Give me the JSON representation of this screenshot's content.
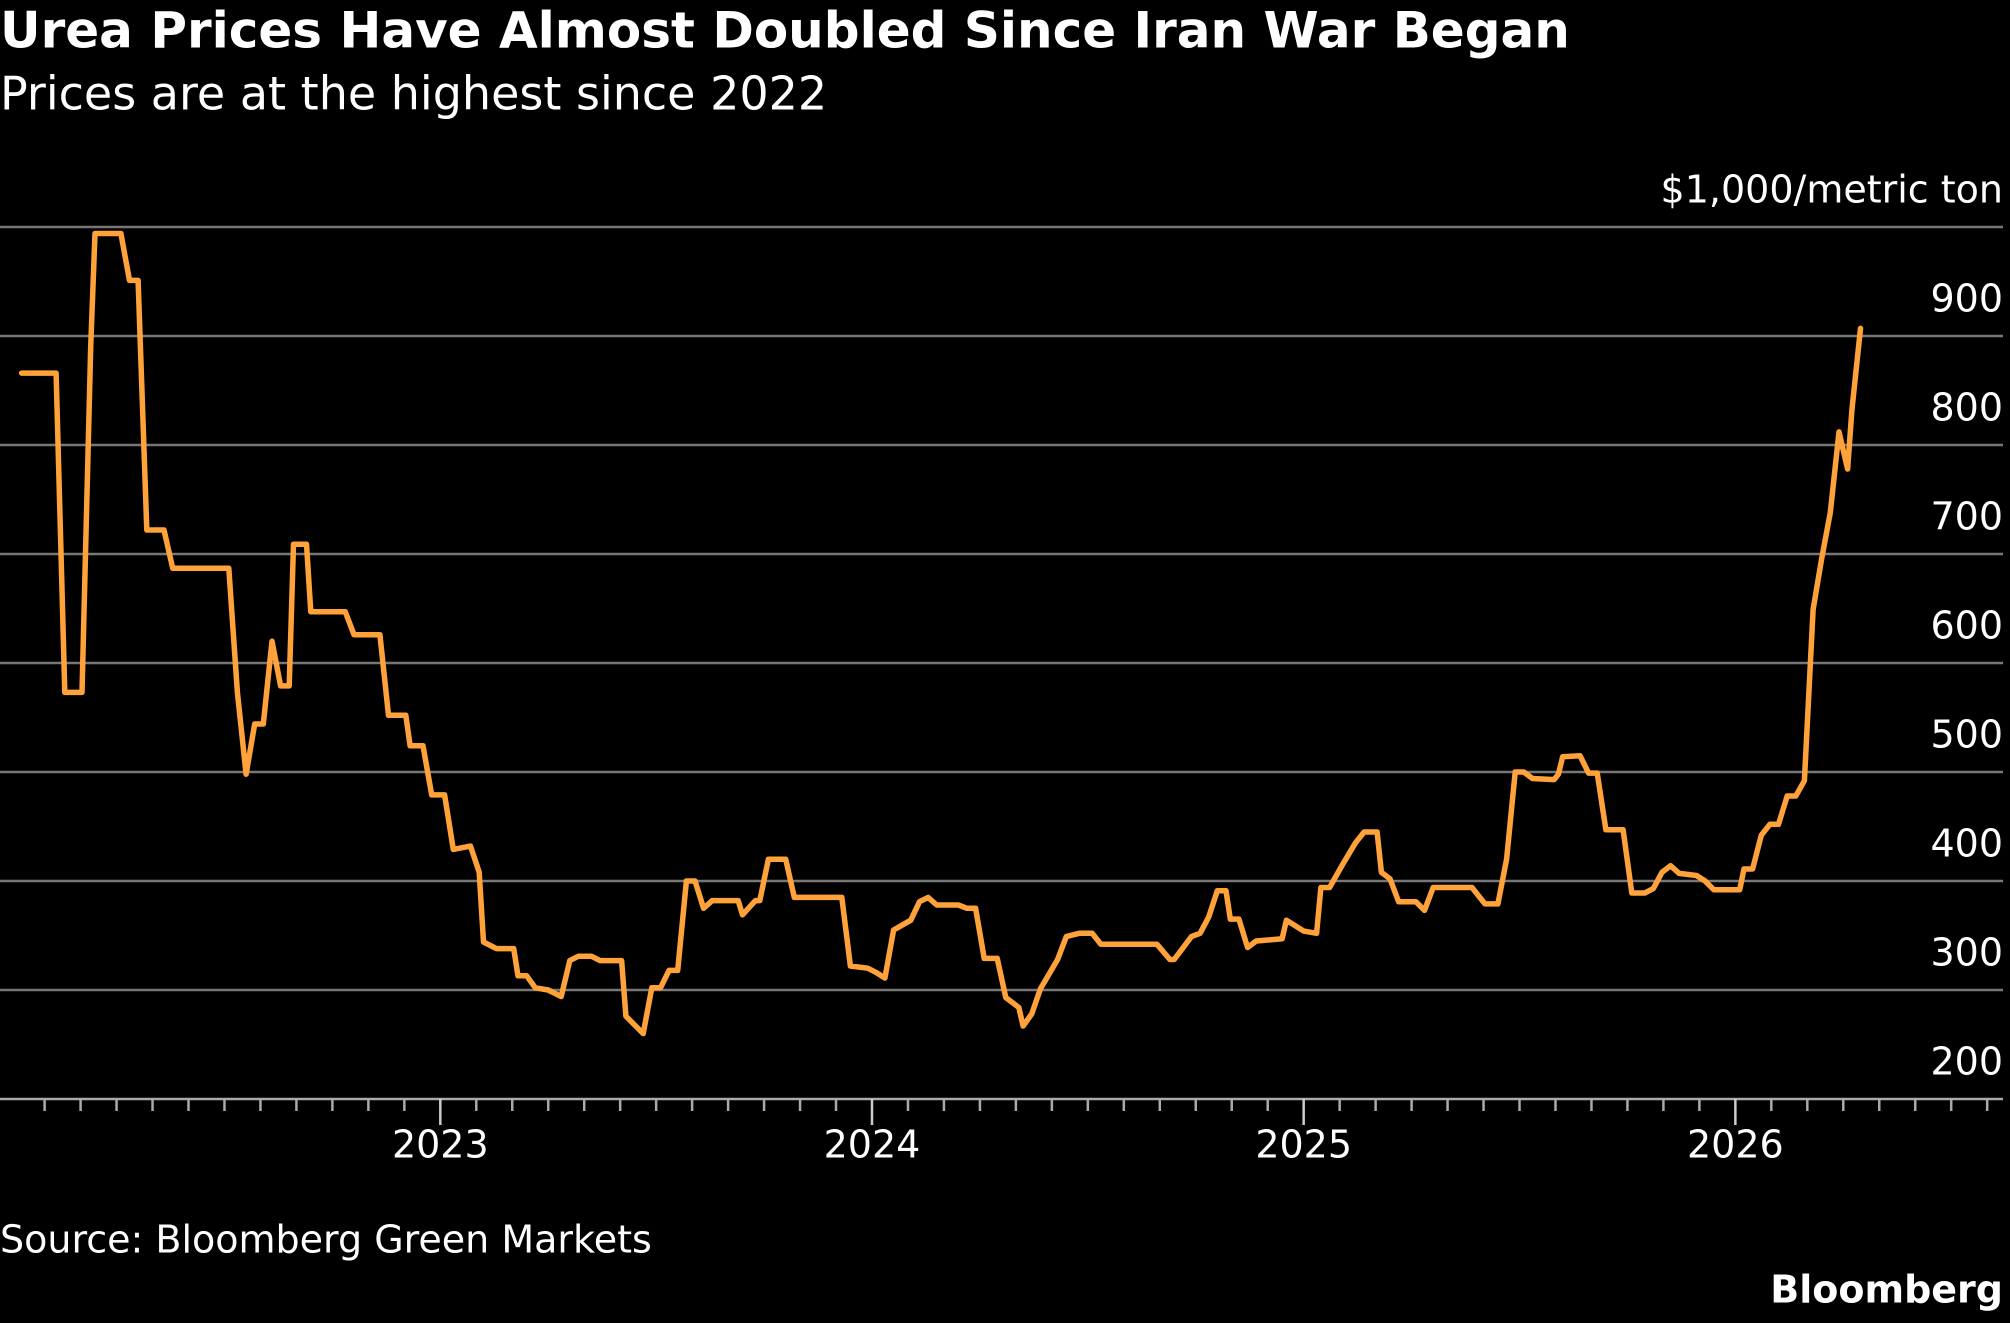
{
  "chart_data": {
    "type": "line",
    "title": "Urea Prices Have Almost Doubled Since Iran War Began",
    "subtitle": "Prices are at the highest since 2022",
    "y_label": "$1,000/metric ton",
    "source": "Source: Bloomberg Green Markets",
    "credit": "Bloomberg",
    "color": "#ffa23a",
    "grid": true,
    "xlim": [
      2021.98,
      2026.62
    ],
    "xticks": [
      2023,
      2024,
      2025,
      2026
    ],
    "ylim": [
      200,
      1000
    ],
    "yticks": [
      200,
      300,
      400,
      500,
      600,
      700,
      800,
      900
    ],
    "x": [
      2022.03,
      2022.11,
      2022.13,
      2022.17,
      2022.19,
      2022.2,
      2022.26,
      2022.28,
      2022.3,
      2022.32,
      2022.36,
      2022.38,
      2022.51,
      2022.53,
      2022.55,
      2022.57,
      2022.59,
      2022.61,
      2022.63,
      2022.65,
      2022.66,
      2022.69,
      2022.7,
      2022.78,
      2022.8,
      2022.86,
      2022.88,
      2022.92,
      2022.93,
      2022.96,
      2022.98,
      2023.01,
      2023.03,
      2023.07,
      2023.09,
      2023.1,
      2023.13,
      2023.17,
      2023.18,
      2023.2,
      2023.22,
      2023.25,
      2023.28,
      2023.3,
      2023.32,
      2023.35,
      2023.37,
      2023.42,
      2023.43,
      2023.47,
      2023.49,
      2023.51,
      2023.53,
      2023.55,
      2023.57,
      2023.59,
      2023.61,
      2023.63,
      2023.69,
      2023.7,
      2023.73,
      2023.74,
      2023.76,
      2023.8,
      2023.82,
      2023.93,
      2023.95,
      2023.99,
      2024.01,
      2024.03,
      2024.05,
      2024.09,
      2024.11,
      2024.13,
      2024.15,
      2024.2,
      2024.22,
      2024.24,
      2024.26,
      2024.29,
      2024.31,
      2024.34,
      2024.35,
      2024.37,
      2024.39,
      2024.43,
      2024.45,
      2024.48,
      2024.51,
      2024.53,
      2024.66,
      2024.69,
      2024.7,
      2024.74,
      2024.76,
      2024.78,
      2024.8,
      2024.82,
      2024.83,
      2024.85,
      2024.87,
      2024.89,
      2024.95,
      2024.96,
      2025.0,
      2025.03,
      2025.04,
      2025.06,
      2025.09,
      2025.12,
      2025.14,
      2025.17,
      2025.18,
      2025.2,
      2025.22,
      2025.26,
      2025.28,
      2025.3,
      2025.39,
      2025.42,
      2025.45,
      2025.47,
      2025.49,
      2025.51,
      2025.53,
      2025.58,
      2025.59,
      2025.6,
      2025.64,
      2025.66,
      2025.68,
      2025.7,
      2025.74,
      2025.76,
      2025.79,
      2025.81,
      2025.83,
      2025.85,
      2025.87,
      2025.91,
      2025.93,
      2025.95,
      2026.01,
      2026.02,
      2026.04,
      2026.06,
      2026.08,
      2026.1,
      2026.12,
      2026.14,
      2026.16,
      2026.18,
      2026.2,
      2026.22,
      2026.24,
      2026.26,
      2026.27,
      2026.29
    ],
    "values": [
      866,
      866,
      573,
      573,
      890,
      994,
      994,
      951,
      951,
      722,
      722,
      687,
      687,
      573,
      498,
      544,
      544,
      620,
      579,
      579,
      709,
      709,
      647,
      647,
      626,
      626,
      552,
      552,
      524,
      524,
      479,
      479,
      429,
      432,
      408,
      344,
      338,
      338,
      313,
      313,
      302,
      300,
      294,
      327,
      331,
      331,
      327,
      327,
      276,
      260,
      302,
      302,
      318,
      318,
      400,
      400,
      375,
      382,
      382,
      369,
      382,
      382,
      420,
      420,
      385,
      385,
      322,
      320,
      316,
      311,
      355,
      364,
      381,
      385,
      378,
      378,
      375,
      375,
      329,
      329,
      293,
      284,
      267,
      278,
      301,
      328,
      349,
      352,
      352,
      342,
      342,
      328,
      328,
      349,
      352,
      367,
      391,
      391,
      365,
      365,
      339,
      345,
      347,
      364,
      354,
      352,
      394,
      394,
      415,
      435,
      445,
      445,
      408,
      402,
      381,
      381,
      373,
      394,
      394,
      379,
      379,
      420,
      500,
      500,
      494,
      493,
      498,
      514,
      515,
      499,
      499,
      447,
      447,
      389,
      389,
      393,
      408,
      414,
      407,
      405,
      400,
      392,
      392,
      411,
      411,
      442,
      452,
      452,
      478,
      478,
      492,
      649,
      696,
      738,
      812,
      778,
      832,
      907
    ]
  }
}
